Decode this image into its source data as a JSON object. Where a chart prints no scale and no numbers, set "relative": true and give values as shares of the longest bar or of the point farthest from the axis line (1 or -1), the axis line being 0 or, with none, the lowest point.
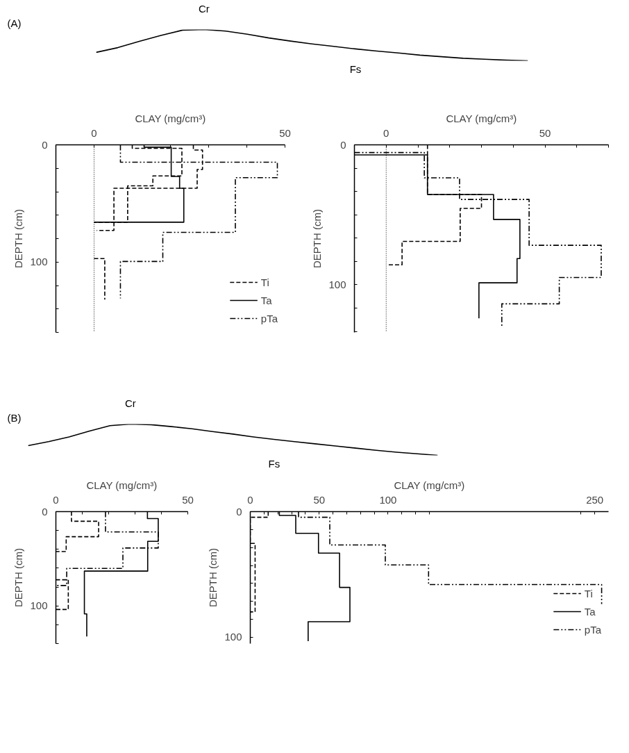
{
  "chart_data": [
    {
      "type": "line",
      "relative": true,
      "categories": [
        null,
        null,
        null,
        null,
        null,
        null,
        null,
        null,
        null,
        null,
        null,
        null,
        null,
        null,
        null,
        null,
        null,
        null,
        null,
        null,
        null
      ],
      "values": [
        0.27,
        0.42,
        0.62,
        0.81,
        0.98,
        1.0,
        0.95,
        0.85,
        0.73,
        0.63,
        0.54,
        0.46,
        0.38,
        0.31,
        0.25,
        0.18,
        0.13,
        0.08,
        0.05,
        0.02,
        0
      ],
      "color": "#000000",
      "annotations": [
        "(A)",
        "Cr",
        "Fs"
      ]
    },
    {
      "type": "line",
      "xlabel": "CLAY (mg/cm³)",
      "ylabel": "DEPTH (cm)",
      "xlim": [
        -10,
        50
      ],
      "ylim": [
        160,
        0
      ],
      "xticks": [
        {
          "value": -10,
          "label": null
        },
        0,
        {
          "value": 10,
          "label": null
        },
        {
          "value": 20,
          "label": null
        },
        {
          "value": 30,
          "label": null
        },
        {
          "value": 40,
          "label": null
        },
        50
      ],
      "yticks": [
        0,
        {
          "value": 20,
          "label": null
        },
        {
          "value": 40,
          "label": null
        },
        {
          "value": 60,
          "label": null
        },
        {
          "value": 80,
          "label": null
        },
        100,
        {
          "value": 120,
          "label": null
        },
        {
          "value": 140,
          "label": null
        },
        {
          "value": 160,
          "label": null
        }
      ],
      "ref_lines": [
        {
          "axis": "x",
          "value": 0,
          "line_style": "dotted",
          "color": "#000000"
        }
      ],
      "legend": "bottom right",
      "series": [
        {
          "name": "Ti",
          "color": "#000000",
          "line_style": "dashed",
          "x": [
            10,
            10,
            23,
            23,
            15.4,
            15.4,
            8.8,
            8.8,
            0
          ],
          "values": [
            0,
            3,
            3,
            26.5,
            26.5,
            35,
            35,
            66,
            66
          ]
        },
        {
          "name": "Ta",
          "color": "#000000",
          "line_style": "solid",
          "x": [
            13.1,
            13.1,
            20.2,
            20.2,
            22.4,
            22.4,
            23.5,
            23.5,
            0
          ],
          "values": [
            0,
            2,
            2,
            27,
            27,
            37,
            37,
            66,
            66
          ]
        },
        {
          "name": "pTa",
          "color": "#000000",
          "line_style": "dashdot",
          "x": [
            6.9,
            6.9,
            48,
            48,
            37,
            37,
            18,
            18,
            6.9,
            6.9
          ],
          "values": [
            0,
            14.8,
            14.8,
            28,
            28,
            74.7,
            74.7,
            99.5,
            99.5,
            131
          ]
        },
        {
          "color": "#000000",
          "line_style": "dashed",
          "x": [
            26,
            26,
            28.4,
            28.4,
            27,
            27,
            5.2,
            5.2,
            0.7
          ],
          "values": [
            0,
            4.4,
            4.4,
            21,
            21,
            37,
            37,
            73,
            73
          ]
        },
        {
          "color": "#000000",
          "line_style": "dashed",
          "x": [
            0,
            2.8,
            2.8
          ],
          "values": [
            97,
            97,
            132
          ]
        }
      ]
    },
    {
      "type": "line",
      "xlabel": "CLAY (mg/cm³)",
      "ylabel": "DEPTH (cm)",
      "xlim": [
        -10,
        70
      ],
      "ylim": [
        134,
        0
      ],
      "xticks": [
        {
          "value": -10,
          "label": null
        },
        0,
        {
          "value": 10,
          "label": null
        },
        {
          "value": 20,
          "label": null
        },
        {
          "value": 30,
          "label": null
        },
        {
          "value": 40,
          "label": null
        },
        50,
        {
          "value": 60,
          "label": null
        },
        {
          "value": 70,
          "label": null
        }
      ],
      "yticks": [
        0,
        {
          "value": 16.7,
          "label": null
        },
        {
          "value": 33.3,
          "label": null
        },
        {
          "value": 50,
          "label": null
        },
        {
          "value": 66.7,
          "label": null
        },
        {
          "value": 83.3,
          "label": null
        },
        100,
        {
          "value": 116.7,
          "label": null
        },
        {
          "value": 133.3,
          "label": null
        }
      ],
      "ref_lines": [
        {
          "axis": "x",
          "value": 0,
          "line_style": "dotted",
          "color": "#000000"
        }
      ],
      "series": [
        {
          "color": "#000000",
          "line_style": "dashed",
          "x": [
            13,
            13,
            30,
            30,
            23.3,
            23.3,
            5,
            5,
            0.6
          ],
          "values": [
            0,
            35.5,
            35.5,
            45.4,
            45.4,
            69,
            69,
            85.7,
            85.7
          ]
        },
        {
          "color": "#000000",
          "line_style": "solid",
          "x": [
            -10,
            13,
            13,
            33.8,
            33.8,
            42.1,
            42.1,
            41.2,
            41.2,
            29.2,
            29.2
          ],
          "values": [
            7.2,
            7.2,
            35.5,
            35.5,
            53.3,
            53.3,
            81.3,
            81.3,
            98.6,
            98.6,
            123.9
          ]
        },
        {
          "color": "#000000",
          "line_style": "dashdot",
          "x": [
            -10,
            12,
            12,
            23.1,
            23.1,
            45,
            45,
            67.7,
            67.7,
            54.5,
            54.5,
            36.4,
            36.4
          ],
          "values": [
            5.5,
            5.5,
            23.6,
            23.6,
            39,
            39,
            71.8,
            71.8,
            94.8,
            94.8,
            113.6,
            113.6,
            130.4
          ]
        }
      ]
    },
    {
      "type": "line",
      "relative": true,
      "categories": [
        null,
        null,
        null,
        null,
        null,
        null,
        null,
        null,
        null,
        null,
        null,
        null,
        null,
        null,
        null,
        null,
        null,
        null,
        null,
        null,
        null
      ],
      "values": [
        0.31,
        0.44,
        0.59,
        0.78,
        0.95,
        1.0,
        0.98,
        0.92,
        0.85,
        0.76,
        0.68,
        0.59,
        0.51,
        0.44,
        0.37,
        0.3,
        0.23,
        0.16,
        0.1,
        0.05,
        0
      ],
      "color": "#000000",
      "annotations": [
        "(B)",
        "Cr",
        "Fs"
      ]
    },
    {
      "type": "line",
      "xlabel": "CLAY (mg/cm³)",
      "ylabel": "DEPTH (cm)",
      "xlim": [
        0,
        50
      ],
      "ylim": [
        140,
        0
      ],
      "xticks": [
        0,
        {
          "value": 10,
          "label": null
        },
        {
          "value": 20,
          "label": null
        },
        {
          "value": 30,
          "label": null
        },
        {
          "value": 40,
          "label": null
        },
        50
      ],
      "yticks": [
        0,
        {
          "value": 20,
          "label": null
        },
        {
          "value": 40,
          "label": null
        },
        {
          "value": 60,
          "label": null
        },
        {
          "value": 80,
          "label": null
        },
        100,
        {
          "value": 120,
          "label": null
        },
        {
          "value": 140,
          "label": null
        }
      ],
      "series": [
        {
          "color": "#000000",
          "line_style": "dashed",
          "x": [
            5.9,
            5.9,
            16.2,
            16.2,
            3.9,
            3.9,
            0
          ],
          "values": [
            0,
            10.2,
            10.2,
            26.6,
            26.6,
            42.4,
            42.4
          ]
        },
        {
          "color": "#000000",
          "line_style": "dashed",
          "x": [
            0,
            4.7,
            4.7,
            0
          ],
          "values": [
            72.3,
            72.3,
            103.8,
            103.8
          ]
        },
        {
          "color": "#000000",
          "line_style": "solid",
          "x": [
            34.7,
            34.7,
            38.8,
            38.8,
            34.8,
            34.8,
            10.8,
            10.8,
            11.7,
            11.7
          ],
          "values": [
            0,
            7.4,
            7.4,
            31.5,
            31.5,
            63.1,
            63.1,
            108.5,
            108.5,
            132.4
          ]
        },
        {
          "color": "#000000",
          "line_style": "dashdot",
          "x": [
            18.8,
            18.8,
            38.8,
            38.8,
            25.4,
            25.4,
            4.1,
            4.1,
            0
          ],
          "values": [
            0,
            21.6,
            21.6,
            38.6,
            38.6,
            60.2,
            60.2,
            78.4,
            78.4
          ]
        }
      ]
    },
    {
      "type": "line",
      "xlabel": "CLAY (mg/cm³)",
      "ylabel": "DEPTH (cm)",
      "xlim": [
        0,
        260
      ],
      "ylim": [
        105,
        0
      ],
      "xticks": [
        0,
        {
          "value": 10,
          "label": null
        },
        {
          "value": 20,
          "label": null
        },
        {
          "value": 30,
          "label": null
        },
        {
          "value": 40,
          "label": null
        },
        50,
        {
          "value": 60,
          "label": null
        },
        {
          "value": 70,
          "label": null
        },
        {
          "value": 80,
          "label": null
        },
        {
          "value": 90,
          "label": null
        },
        100,
        {
          "value": 110,
          "label": null
        },
        {
          "value": 120,
          "label": null
        },
        {
          "value": 130,
          "label": null
        },
        {
          "value": 240,
          "label": null
        },
        250
      ],
      "yticks": [
        0,
        {
          "value": 14.3,
          "label": null
        },
        {
          "value": 28.6,
          "label": null
        },
        {
          "value": 42.9,
          "label": null
        },
        {
          "value": 57.1,
          "label": null
        },
        {
          "value": 71.4,
          "label": null
        },
        {
          "value": 85.7,
          "label": null
        },
        100
      ],
      "legend": "bottom right",
      "series": [
        {
          "name": "Ti",
          "color": "#000000",
          "line_style": "dashed",
          "x": [
            13,
            13,
            0,
            0,
            3.5,
            3.5,
            0
          ],
          "values": [
            0,
            4.5,
            4.5,
            25.3,
            25.3,
            79.8,
            79.8
          ]
        },
        {
          "name": "Ta",
          "color": "#000000",
          "line_style": "solid",
          "x": [
            21.1,
            21.1,
            33,
            33,
            49.5,
            49.5,
            64.8,
            64.8,
            72.3,
            72.3,
            42,
            42
          ],
          "values": [
            0,
            3,
            3,
            17.3,
            17.3,
            33,
            33,
            60.3,
            60.3,
            87.6,
            87.6,
            103
          ]
        },
        {
          "name": "pTa",
          "color": "#000000",
          "line_style": "dashdot",
          "x": [
            35,
            35,
            57.7,
            57.7,
            98,
            98,
            129.4,
            129.4,
            255,
            255
          ],
          "values": [
            0,
            4.5,
            4.5,
            26.5,
            26.5,
            42.4,
            42.4,
            58,
            58,
            73.5
          ]
        }
      ]
    }
  ]
}
